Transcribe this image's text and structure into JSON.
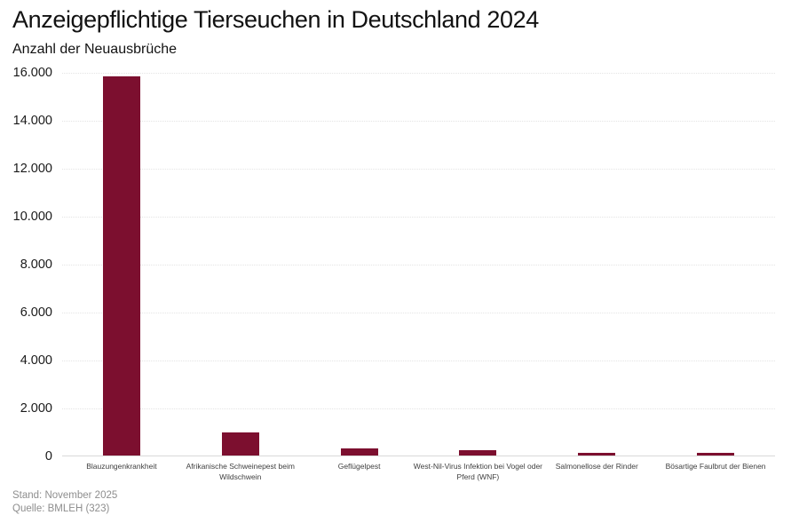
{
  "header": {
    "title": "Anzeigepflichtige Tierseuchen in Deutschland 2024",
    "subtitle": "Anzahl der Neuausbrüche"
  },
  "footer": {
    "stand": "Stand: November 2025",
    "quelle": "Quelle: BMLEH (323)"
  },
  "colors": {
    "bar": "#7c0f2f",
    "grid": "#e4e4e4",
    "axis": "#d9d9d9",
    "title_text": "#121212",
    "ytick_text": "#1a1a1a",
    "xtick_text": "#3f3f3f",
    "footer_text": "#8e8e8e",
    "background": "#ffffff"
  },
  "chart_data": {
    "type": "bar",
    "title": "Anzeigepflichtige Tierseuchen in Deutschland 2024",
    "subtitle": "Anzahl der Neuausbrüche",
    "xlabel": "",
    "ylabel": "Anzahl der Neuausbrüche",
    "categories": [
      "Blauzungenkrankheit",
      "Afrikanische Schweinepest beim Wildschwein",
      "Geflügelpest",
      "West-Nil-Virus Infektion bei Vogel oder Pferd (WNF)",
      "Salmonellose der Rinder",
      "Bösartige Faulbrut der Bienen"
    ],
    "values": [
      15800,
      950,
      300,
      230,
      120,
      110
    ],
    "ylim": [
      0,
      16000
    ],
    "ytick_step": 2000,
    "yticks": [
      {
        "value": 0,
        "label": "0"
      },
      {
        "value": 2000,
        "label": "2.000"
      },
      {
        "value": 4000,
        "label": "4.000"
      },
      {
        "value": 6000,
        "label": "6.000"
      },
      {
        "value": 8000,
        "label": "8.000"
      },
      {
        "value": 10000,
        "label": "10.000"
      },
      {
        "value": 12000,
        "label": "12.000"
      },
      {
        "value": 14000,
        "label": "14.000"
      },
      {
        "value": 16000,
        "label": "16.000"
      }
    ],
    "grid": "horizontal-dotted",
    "legend": "none",
    "bar_color": "#7c0f2f"
  }
}
